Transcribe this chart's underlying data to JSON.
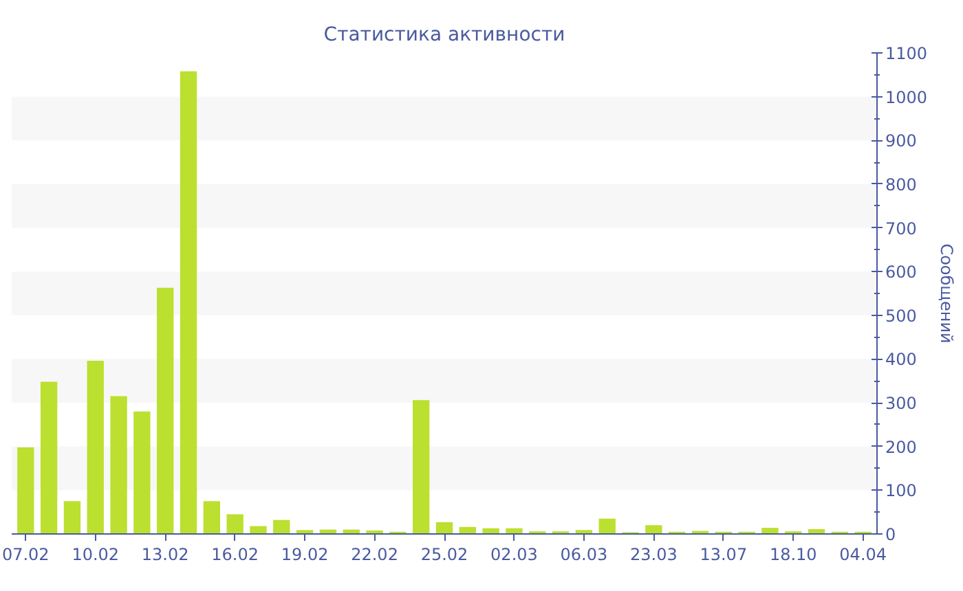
{
  "chart_data": {
    "type": "bar",
    "title": "Статистика активности",
    "ylabel": "Сообщений",
    "categories": [
      "07.02",
      null,
      null,
      "10.02",
      null,
      null,
      "13.02",
      null,
      null,
      "16.02",
      null,
      null,
      "19.02",
      null,
      null,
      "22.02",
      null,
      null,
      "25.02",
      null,
      null,
      "02.03",
      null,
      null,
      "06.03",
      null,
      null,
      "23.03",
      null,
      null,
      "13.07",
      null,
      null,
      "18.10",
      null,
      null,
      "04.04"
    ],
    "values": [
      198,
      348,
      75,
      396,
      315,
      280,
      563,
      1058,
      75,
      45,
      18,
      32,
      9,
      10,
      10,
      8,
      5,
      306,
      27,
      16,
      13,
      13,
      6,
      6,
      9,
      35,
      4,
      20,
      5,
      7,
      5,
      5,
      14,
      6,
      11,
      5,
      5
    ],
    "color": "#bbe02f",
    "ylim": [
      0,
      1100
    ],
    "yticks": [
      0,
      100,
      200,
      300,
      400,
      500,
      600,
      700,
      800,
      900,
      1000,
      1100
    ],
    "bands": [
      {
        "axis": "y",
        "from": 100,
        "to": 200,
        "color": "#f7f7f7"
      },
      {
        "axis": "y",
        "from": 300,
        "to": 400,
        "color": "#f7f7f7"
      },
      {
        "axis": "y",
        "from": 500,
        "to": 600,
        "color": "#f7f7f7"
      },
      {
        "axis": "y",
        "from": 700,
        "to": 800,
        "color": "#f7f7f7"
      },
      {
        "axis": "y",
        "from": 900,
        "to": 1000,
        "color": "#f7f7f7"
      }
    ]
  }
}
